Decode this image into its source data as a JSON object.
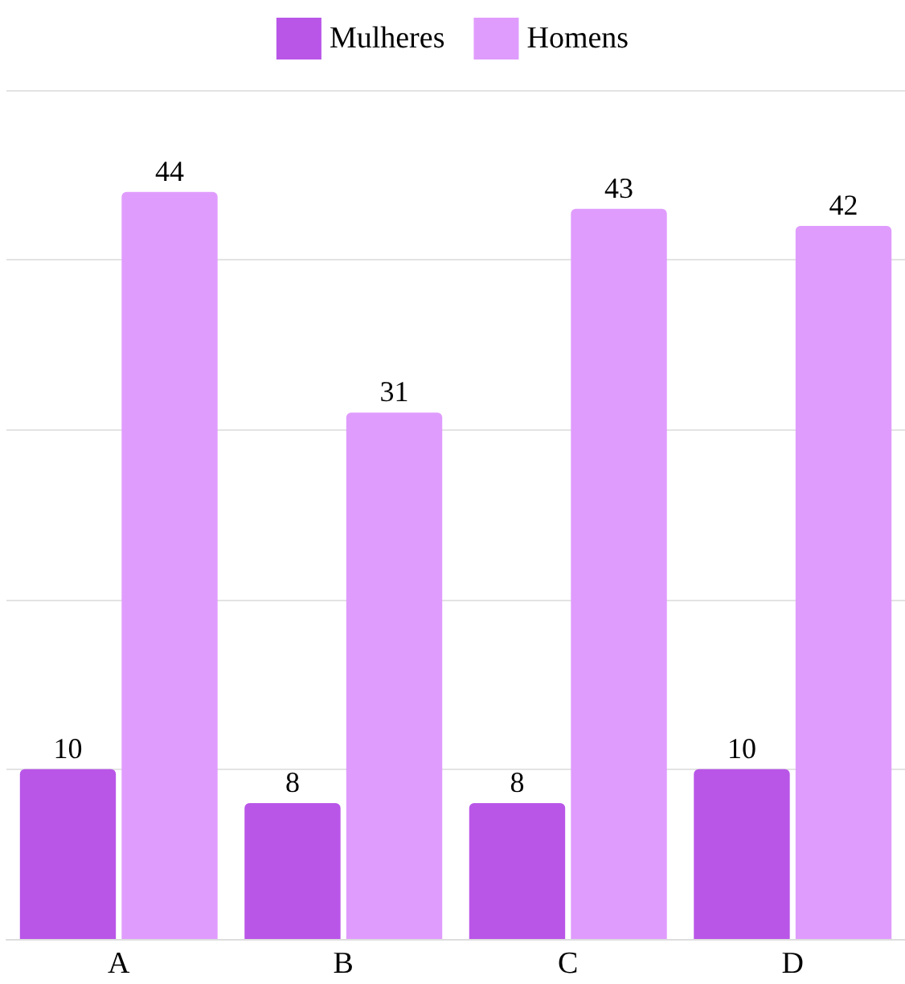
{
  "chart_data": {
    "type": "bar",
    "categories": [
      "A",
      "B",
      "C",
      "D"
    ],
    "series": [
      {
        "name": "Mulheres",
        "color": "#b956e8",
        "values": [
          10,
          8,
          8,
          10
        ]
      },
      {
        "name": "Homens",
        "color": "#df9cfd",
        "values": [
          44,
          31,
          43,
          42
        ]
      }
    ],
    "ylim": [
      0,
      50
    ],
    "yticks": [
      {
        "value": 0,
        "label": null
      },
      {
        "value": 10,
        "label": null
      },
      {
        "value": 20,
        "label": null
      },
      {
        "value": 30,
        "label": null
      },
      {
        "value": 40,
        "label": null
      },
      {
        "value": 50,
        "label": null
      }
    ],
    "tick_labels": "x",
    "grid": "y",
    "legend": "top",
    "data_labels": true
  }
}
